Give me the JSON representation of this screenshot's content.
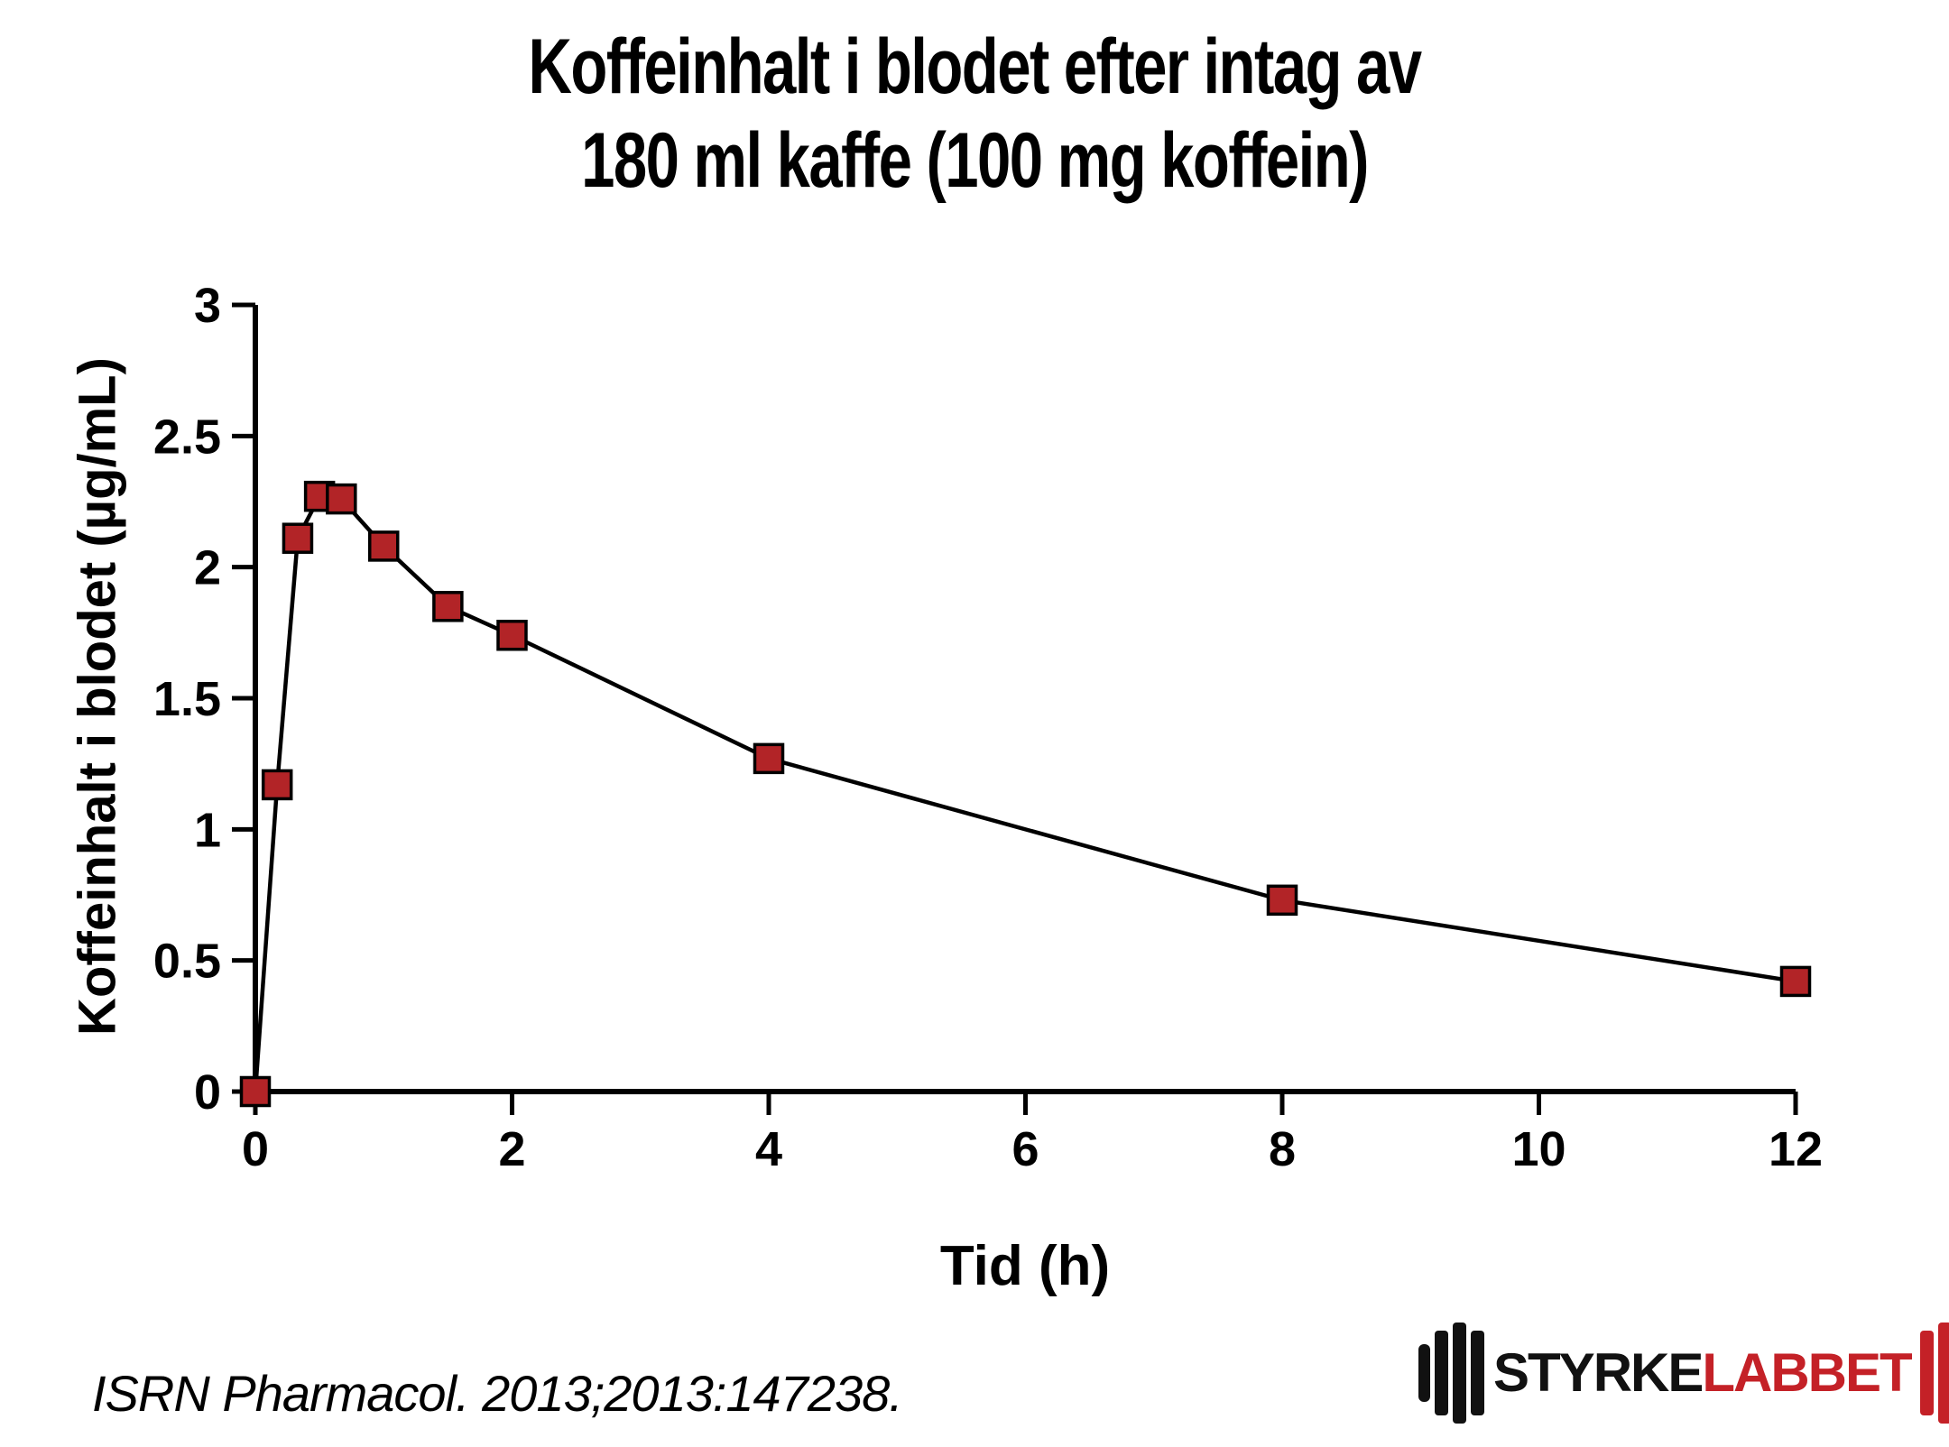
{
  "title": {
    "line1": "Koffeinhalt i blodet efter intag av",
    "line2": "180 ml kaffe (100 mg koffein)"
  },
  "source": "ISRN Pharmacol. 2013;2013:147238.",
  "logo": {
    "text_black": "STYRKE",
    "text_red": "LABBET",
    "red": "#c42127",
    "black": "#111111"
  },
  "colors": {
    "background": "#ffffff",
    "axis": "#000000",
    "line": "#000000",
    "marker_fill": "#b22427",
    "marker_stroke": "#000000",
    "text": "#000000"
  },
  "chart_data": {
    "type": "line",
    "title": "Koffeinhalt i blodet efter intag av 180 ml kaffe (100 mg koffein)",
    "xlabel": "Tid (h)",
    "ylabel": "Koffeinhalt i blodet (µg/mL)",
    "x": [
      0,
      0.17,
      0.33,
      0.5,
      0.67,
      1,
      1.5,
      2,
      4,
      8,
      12
    ],
    "y": [
      0,
      1.17,
      2.11,
      2.27,
      2.26,
      2.08,
      1.85,
      1.74,
      1.27,
      0.73,
      0.42
    ],
    "x_ticks": [
      0,
      2,
      4,
      6,
      8,
      10,
      12
    ],
    "y_ticks": [
      0,
      0.5,
      1,
      1.5,
      2,
      2.5,
      3
    ],
    "xlim": [
      0,
      12
    ],
    "ylim": [
      0,
      3
    ],
    "grid": false,
    "legend": null,
    "marker": "square"
  }
}
